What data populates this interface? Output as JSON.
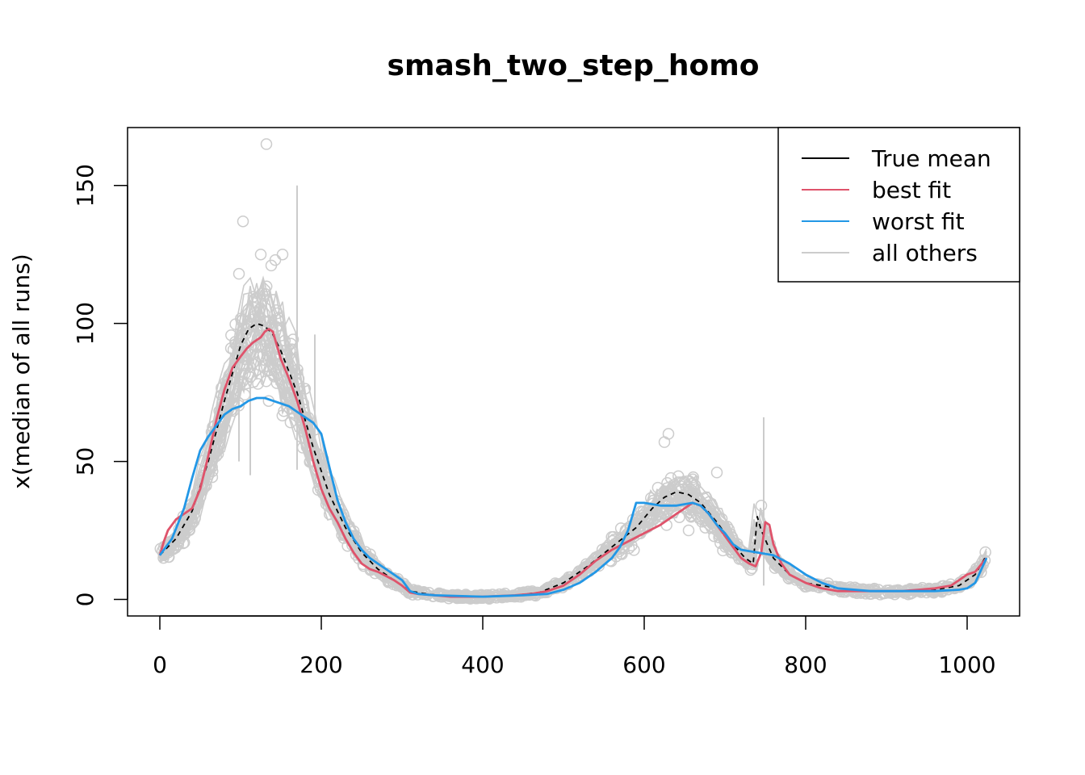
{
  "chart_data": {
    "type": "line",
    "title": "smash_two_step_homo",
    "xlabel": "",
    "ylabel": "x(median of all runs)",
    "xlim": [
      -40,
      1065
    ],
    "ylim": [
      -6,
      171
    ],
    "xticks": [
      0,
      200,
      400,
      600,
      800,
      1000
    ],
    "yticks": [
      0,
      50,
      100,
      150
    ],
    "grid": false,
    "legend_position": "top-right",
    "legend": [
      {
        "label": "True mean",
        "color": "#000000"
      },
      {
        "label": "best fit",
        "color": "#DF536B"
      },
      {
        "label": "worst fit",
        "color": "#2297E6"
      },
      {
        "label": "all others",
        "color": "#CCCCCC"
      }
    ],
    "series": [
      {
        "name": "True mean",
        "color": "#000000",
        "style": "dashed",
        "x": [
          0,
          20,
          40,
          60,
          80,
          100,
          110,
          120,
          130,
          140,
          150,
          170,
          190,
          210,
          230,
          250,
          270,
          290,
          310,
          330,
          360,
          400,
          440,
          470,
          500,
          530,
          560,
          590,
          610,
          625,
          640,
          655,
          670,
          690,
          710,
          725,
          735,
          740,
          745,
          760,
          780,
          800,
          840,
          880,
          920,
          960,
          990,
          1010,
          1024
        ],
        "y": [
          16,
          22,
          32,
          50,
          72,
          92,
          98,
          100,
          99,
          96,
          90,
          75,
          55,
          38,
          26,
          17,
          11,
          7,
          3,
          2,
          1,
          1,
          1.5,
          2.5,
          6,
          12,
          19,
          26,
          33,
          37,
          39,
          38,
          35,
          28,
          20,
          15,
          13,
          30,
          25,
          15,
          9,
          6,
          4,
          3,
          3,
          3.5,
          5,
          9,
          16
        ]
      },
      {
        "name": "best fit",
        "color": "#DF536B",
        "x": [
          0,
          5,
          10,
          15,
          20,
          25,
          30,
          35,
          40,
          50,
          60,
          70,
          80,
          90,
          100,
          108,
          115,
          120,
          125,
          130,
          135,
          140,
          145,
          150,
          160,
          170,
          180,
          190,
          200,
          210,
          220,
          230,
          240,
          250,
          260,
          270,
          280,
          290,
          300,
          310,
          320,
          340,
          360,
          400,
          440,
          460,
          480,
          500,
          520,
          540,
          560,
          580,
          600,
          620,
          640,
          650,
          660,
          670,
          680,
          690,
          700,
          710,
          720,
          730,
          738,
          745,
          750,
          755,
          760,
          770,
          780,
          800,
          820,
          840,
          860,
          880,
          900,
          920,
          940,
          960,
          980,
          990,
          1000,
          1010,
          1024
        ],
        "y": [
          16,
          21,
          25,
          27,
          29,
          30,
          31,
          32,
          33,
          40,
          52,
          65,
          76,
          84,
          88,
          91,
          93,
          94,
          95,
          97,
          98,
          97,
          92,
          87,
          80,
          72,
          62,
          50,
          40,
          33,
          28,
          22,
          17,
          13,
          11,
          10,
          8.5,
          7,
          5,
          2.5,
          2,
          1.5,
          1,
          1,
          1.5,
          2,
          3,
          5,
          9,
          14,
          18,
          21,
          24,
          27,
          31,
          33,
          35,
          34,
          31,
          27,
          23,
          19,
          15,
          13,
          12,
          17,
          28,
          27,
          20,
          13,
          9,
          6,
          4,
          3,
          3,
          3,
          3,
          3,
          3.5,
          4,
          5,
          7,
          9,
          10,
          15
        ]
      },
      {
        "name": "worst fit",
        "color": "#2297E6",
        "x": [
          0,
          15,
          30,
          40,
          50,
          60,
          70,
          80,
          90,
          100,
          110,
          120,
          130,
          140,
          150,
          160,
          170,
          180,
          190,
          200,
          210,
          220,
          230,
          240,
          250,
          260,
          270,
          280,
          290,
          300,
          310,
          320,
          340,
          400,
          450,
          480,
          500,
          520,
          540,
          560,
          570,
          580,
          590,
          600,
          620,
          640,
          660,
          670,
          680,
          690,
          700,
          710,
          720,
          740,
          760,
          780,
          800,
          820,
          840,
          880,
          920,
          960,
          990,
          1000,
          1010,
          1024
        ],
        "y": [
          16,
          22,
          33,
          44,
          54,
          59,
          63,
          67,
          69,
          70,
          72,
          73,
          73,
          72,
          71,
          70,
          68,
          66,
          64,
          60,
          48,
          36,
          28,
          22,
          18,
          15,
          13,
          11,
          9,
          7,
          3,
          2,
          1.5,
          1,
          1.5,
          2,
          3.5,
          6,
          10,
          15,
          19,
          25,
          35,
          35,
          34,
          34,
          35,
          34,
          31,
          27,
          24,
          20,
          18,
          17,
          16,
          13,
          9,
          6,
          4,
          3,
          3,
          3,
          3.5,
          4,
          6,
          15
        ]
      }
    ],
    "others_outliers": [
      {
        "x": 132,
        "y": 165
      },
      {
        "x": 103,
        "y": 137
      },
      {
        "x": 125,
        "y": 125
      },
      {
        "x": 152,
        "y": 125
      },
      {
        "x": 143,
        "y": 123
      },
      {
        "x": 138,
        "y": 121
      },
      {
        "x": 98,
        "y": 118
      },
      {
        "x": 630,
        "y": 60
      },
      {
        "x": 625,
        "y": 57
      },
      {
        "x": 690,
        "y": 46
      },
      {
        "x": 655,
        "y": 25
      },
      {
        "x": 745,
        "y": 34
      }
    ],
    "others_spikes": [
      {
        "x": 170,
        "from": 47,
        "to": 150
      },
      {
        "x": 192,
        "from": 52,
        "to": 96
      },
      {
        "x": 112,
        "from": 45,
        "to": 78
      },
      {
        "x": 98,
        "from": 50,
        "to": 82
      },
      {
        "x": 748,
        "from": 5,
        "to": 66
      }
    ]
  }
}
